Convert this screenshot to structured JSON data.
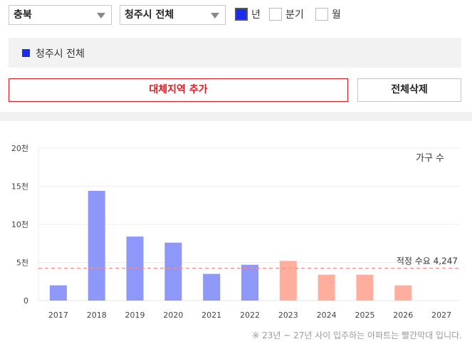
{
  "filters": {
    "province": "충북",
    "city": "청주시 전체",
    "periods": [
      {
        "label": "년",
        "checked": true
      },
      {
        "label": "분기",
        "checked": false
      },
      {
        "label": "월",
        "checked": false
      }
    ]
  },
  "region_legend": {
    "label": "청주시 전체",
    "color": "#1a2cf0"
  },
  "buttons": {
    "add_region": "대체지역 추가",
    "delete_all": "전체삭제"
  },
  "chart_data": {
    "type": "bar",
    "categories": [
      "2017",
      "2018",
      "2019",
      "2020",
      "2021",
      "2022",
      "2023",
      "2024",
      "2025",
      "2026",
      "2027"
    ],
    "values": [
      2000,
      14400,
      8400,
      7600,
      3500,
      4700,
      5200,
      3400,
      3400,
      2000,
      0
    ],
    "bar_colors": [
      "#8d98f8",
      "#8d98f8",
      "#8d98f8",
      "#8d98f8",
      "#8d98f8",
      "#8d98f8",
      "#ffae9e",
      "#ffae9e",
      "#ffae9e",
      "#ffae9e",
      "#ffae9e"
    ],
    "ylim": [
      0,
      20000
    ],
    "yticks": [
      0,
      5000,
      10000,
      15000,
      20000
    ],
    "ytick_labels": [
      "0",
      "5천",
      "10천",
      "15천",
      "20천"
    ],
    "series_label": "가구 수",
    "reference_line": {
      "value": 4247,
      "label": "적정 수요 4,247",
      "color": "#ff8a8a"
    },
    "grid": true
  },
  "footnote": "※ 23년 ~ 27년 사이 입주하는 아파트는 빨간막대 입니다."
}
